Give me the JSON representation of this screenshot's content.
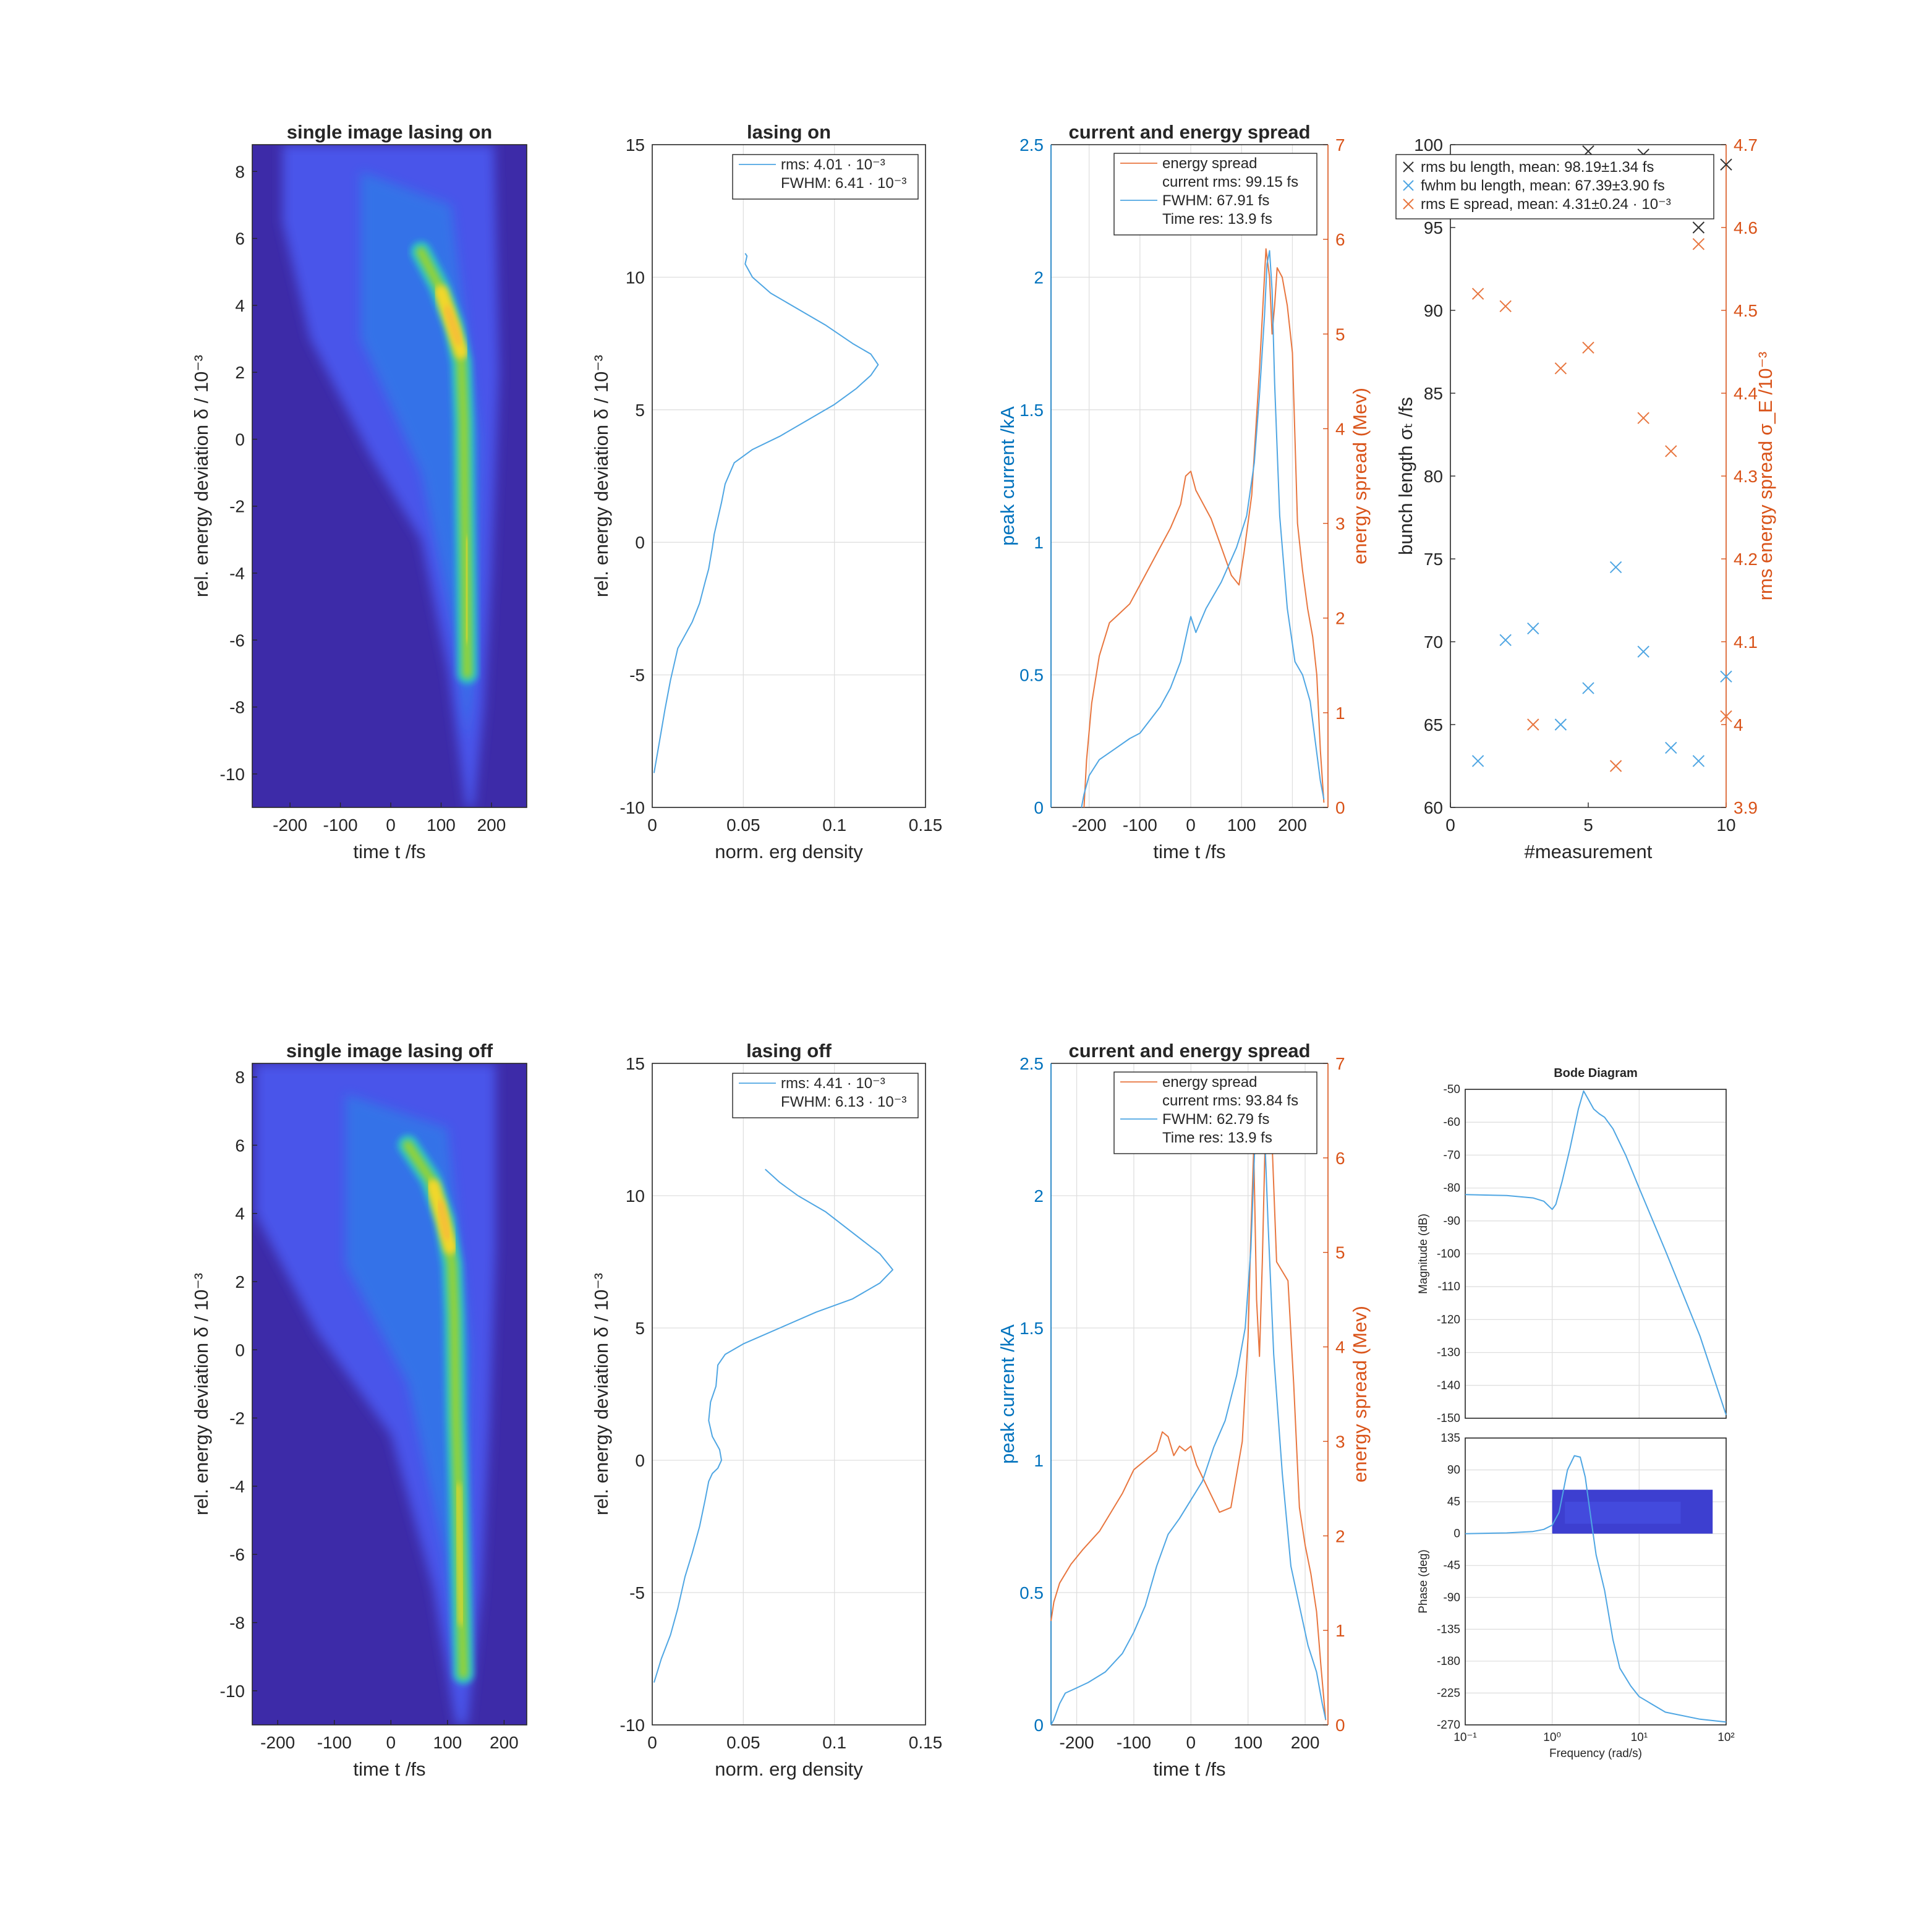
{
  "colors": {
    "blue": "#0072bd",
    "orange": "#d95319",
    "line_blue": "#4fa6e3",
    "line_orange": "#e8763f",
    "axis": "#262626",
    "grid": "#dfdfdf",
    "heat_bg": "#3d2ba8"
  },
  "row_top": {
    "image": {
      "title": "single image lasing on",
      "xlabel": "time t /fs",
      "ylabel": "rel. energy deviation δ / 10⁻³",
      "xticks": [
        -200,
        -100,
        0,
        100,
        200
      ],
      "yticks": [
        -10,
        -8,
        -6,
        -4,
        -2,
        0,
        2,
        4,
        6,
        8
      ],
      "xlim": [
        -275,
        270
      ],
      "ylim": [
        -11,
        8.8
      ]
    },
    "profile": {
      "title": "lasing on",
      "xlabel": "norm. erg density",
      "ylabel": "rel. energy deviation δ / 10⁻³",
      "legend": [
        "rms: 4.01 · 10⁻³",
        "FWHM: 6.41 · 10⁻³"
      ],
      "chart_data": {
        "type": "line",
        "xlim": [
          0,
          0.15
        ],
        "ylim": [
          -10,
          15
        ],
        "xticks": [
          "0",
          "0.05",
          "0.1",
          "0.15"
        ],
        "yticks": [
          "-10",
          "-5",
          "0",
          "5",
          "10",
          "15"
        ],
        "series": [
          {
            "x": [
              0.001,
              0.004,
              0.007,
              0.01,
              0.014,
              0.018,
              0.022,
              0.026,
              0.029,
              0.031,
              0.033,
              0.034,
              0.036,
              0.038,
              0.04,
              0.045,
              0.055,
              0.07,
              0.085,
              0.1,
              0.112,
              0.12,
              0.124,
              0.12,
              0.11,
              0.095,
              0.08,
              0.065,
              0.055,
              0.051,
              0.052,
              0.051
            ],
            "y": [
              -8.7,
              -7.5,
              -6.3,
              -5.2,
              -4.0,
              -3.5,
              -3.0,
              -2.3,
              -1.5,
              -1.0,
              -0.2,
              0.3,
              0.9,
              1.5,
              2.2,
              3.0,
              3.5,
              4.0,
              4.6,
              5.2,
              5.8,
              6.3,
              6.7,
              7.1,
              7.5,
              8.2,
              8.8,
              9.4,
              10.0,
              10.5,
              10.8,
              10.9
            ]
          }
        ]
      }
    },
    "current": {
      "title": "current and energy spread",
      "xlabel": "time t /fs",
      "ylabel_left": "peak current /kA",
      "ylabel_right": "energy spread (Mev)",
      "legend": [
        "energy spread",
        "current   rms: 99.15 fs",
        "FWHM: 67.91 fs",
        "Time res: 13.9 fs"
      ],
      "chart_data": {
        "type": "line",
        "xlim": [
          -275,
          270
        ],
        "ylim_left": [
          0,
          2.5
        ],
        "ylim_right": [
          0,
          7
        ],
        "xticks": [
          "-200",
          "-100",
          "0",
          "100",
          "200"
        ],
        "yticks_left": [
          "0",
          "0.5",
          "1",
          "1.5",
          "2",
          "2.5"
        ],
        "yticks_right": [
          "0",
          "1",
          "2",
          "3",
          "4",
          "5",
          "6",
          "7"
        ],
        "current": {
          "x": [
            -215,
            -210,
            -200,
            -180,
            -150,
            -120,
            -100,
            -80,
            -60,
            -40,
            -20,
            -5,
            0,
            10,
            30,
            60,
            90,
            110,
            125,
            135,
            145,
            150,
            155,
            160,
            165,
            175,
            190,
            205,
            220,
            235,
            245,
            255,
            262
          ],
          "y": [
            0,
            0.05,
            0.12,
            0.18,
            0.22,
            0.26,
            0.28,
            0.33,
            0.38,
            0.45,
            0.55,
            0.68,
            0.72,
            0.66,
            0.75,
            0.85,
            0.98,
            1.1,
            1.3,
            1.55,
            1.85,
            2.05,
            2.1,
            1.95,
            1.6,
            1.1,
            0.75,
            0.55,
            0.5,
            0.4,
            0.25,
            0.1,
            0.03
          ]
        },
        "energy_spread": {
          "x": [
            -210,
            -205,
            -195,
            -180,
            -160,
            -140,
            -120,
            -100,
            -80,
            -60,
            -40,
            -20,
            -10,
            0,
            10,
            20,
            40,
            60,
            80,
            95,
            105,
            120,
            135,
            148,
            155,
            160,
            165,
            170,
            180,
            190,
            200,
            210,
            220,
            230,
            240,
            248,
            255,
            262
          ],
          "y": [
            0,
            0.5,
            1.1,
            1.6,
            1.95,
            2.05,
            2.15,
            2.35,
            2.55,
            2.75,
            2.95,
            3.2,
            3.5,
            3.55,
            3.35,
            3.25,
            3.05,
            2.75,
            2.45,
            2.35,
            2.7,
            3.3,
            4.6,
            5.9,
            5.6,
            5.0,
            5.3,
            5.7,
            5.6,
            5.3,
            4.8,
            3.0,
            2.5,
            2.1,
            1.8,
            1.4,
            0.6,
            0.05
          ]
        }
      }
    },
    "measurements": {
      "xlabel": "#measurement",
      "ylabel_left": "bunch length σₜ /fs",
      "ylabel_right": "rms energy spread σ_E /10⁻³",
      "legend": [
        "rms bu length, mean: 98.19±1.34 fs",
        "fwhm bu length, mean: 67.39±3.90 fs",
        "rms E spread, mean: 4.31±0.24 · 10⁻³"
      ],
      "chart_data": {
        "type": "scatter",
        "xlim": [
          0,
          10
        ],
        "ylim_left": [
          60,
          100
        ],
        "ylim_right": [
          3.9,
          4.7
        ],
        "xticks": [
          "0",
          "5",
          "10"
        ],
        "yticks_left": [
          "60",
          "65",
          "70",
          "75",
          "80",
          "85",
          "90",
          "95",
          "100"
        ],
        "yticks_right": [
          "3.9",
          "4",
          "4.1",
          "4.2",
          "4.3",
          "4.4",
          "4.5",
          "4.6",
          "4.7"
        ],
        "rms_bu_length": {
          "x": [
            5,
            7,
            9,
            10
          ],
          "y": [
            99.6,
            99.4,
            95.0,
            98.8
          ]
        },
        "fwhm_bu_length": {
          "x": [
            1,
            2,
            3,
            4,
            5,
            6,
            7,
            8,
            9,
            10
          ],
          "y": [
            62.8,
            70.1,
            70.8,
            65.0,
            67.2,
            74.5,
            69.4,
            63.6,
            62.8,
            67.9
          ]
        },
        "rms_e_spread": {
          "x": [
            1,
            2,
            3,
            4,
            5,
            6,
            7,
            8,
            9,
            10
          ],
          "y": [
            4.52,
            4.505,
            4.0,
            4.43,
            4.455,
            3.95,
            4.37,
            4.33,
            4.58,
            4.01
          ]
        }
      }
    }
  },
  "row_bottom": {
    "image": {
      "title": "single image lasing off",
      "xlabel": "time t /fs",
      "ylabel": "rel. energy deviation δ / 10⁻³",
      "xticks": [
        -200,
        -100,
        0,
        100,
        200
      ],
      "yticks": [
        -10,
        -8,
        -6,
        -4,
        -2,
        0,
        2,
        4,
        6,
        8
      ],
      "xlim": [
        -245,
        240
      ],
      "ylim": [
        -11,
        8.4
      ]
    },
    "profile": {
      "title": "lasing off",
      "xlabel": "norm. erg density",
      "ylabel": "rel. energy deviation δ / 10⁻³",
      "legend": [
        "rms: 4.41 · 10⁻³",
        "FWHM: 6.13 · 10⁻³"
      ],
      "chart_data": {
        "type": "line",
        "xlim": [
          0,
          0.15
        ],
        "ylim": [
          -10,
          15
        ],
        "xticks": [
          "0",
          "0.05",
          "0.1",
          "0.15"
        ],
        "yticks": [
          "-10",
          "-5",
          "0",
          "5",
          "10",
          "15"
        ],
        "series": [
          {
            "x": [
              0.001,
              0.005,
              0.01,
              0.014,
              0.018,
              0.022,
              0.026,
              0.029,
              0.031,
              0.033,
              0.036,
              0.038,
              0.037,
              0.033,
              0.031,
              0.032,
              0.035,
              0.036,
              0.04,
              0.05,
              0.07,
              0.09,
              0.11,
              0.125,
              0.132,
              0.125,
              0.11,
              0.095,
              0.08,
              0.07,
              0.062
            ],
            "y": [
              -8.4,
              -7.5,
              -6.6,
              -5.6,
              -4.4,
              -3.5,
              -2.5,
              -1.5,
              -0.8,
              -0.5,
              -0.3,
              0.0,
              0.4,
              0.9,
              1.5,
              2.2,
              2.8,
              3.6,
              4.0,
              4.4,
              5.0,
              5.6,
              6.1,
              6.7,
              7.2,
              7.8,
              8.6,
              9.4,
              10.0,
              10.5,
              11.0
            ]
          }
        ]
      }
    },
    "current": {
      "title": "current and energy spread",
      "xlabel": "time t /fs",
      "ylabel_left": "peak current /kA",
      "ylabel_right": "energy spread (Mev)",
      "legend": [
        "energy spread",
        "current   rms: 93.84 fs",
        "FWHM: 62.79 fs",
        "Time res: 13.9 fs"
      ],
      "chart_data": {
        "type": "line",
        "xlim": [
          -245,
          240
        ],
        "ylim_left": [
          0,
          2.5
        ],
        "ylim_right": [
          0,
          7
        ],
        "xticks": [
          "-200",
          "-100",
          "0",
          "100",
          "200"
        ],
        "yticks_left": [
          "0",
          "0.5",
          "1",
          "1.5",
          "2",
          "2.5"
        ],
        "yticks_right": [
          "0",
          "1",
          "2",
          "3",
          "4",
          "5",
          "6",
          "7"
        ],
        "current": {
          "x": [
            -245,
            -240,
            -230,
            -220,
            -200,
            -180,
            -150,
            -120,
            -100,
            -80,
            -60,
            -40,
            -20,
            0,
            20,
            40,
            60,
            80,
            95,
            105,
            112,
            120,
            128,
            135,
            145,
            160,
            175,
            190,
            205,
            220,
            230,
            236
          ],
          "y": [
            0,
            0.02,
            0.08,
            0.12,
            0.14,
            0.16,
            0.2,
            0.27,
            0.35,
            0.45,
            0.6,
            0.72,
            0.78,
            0.85,
            0.92,
            1.05,
            1.15,
            1.32,
            1.5,
            1.8,
            2.2,
            2.45,
            2.3,
            1.9,
            1.4,
            0.95,
            0.6,
            0.45,
            0.3,
            0.2,
            0.08,
            0.02
          ]
        },
        "energy_spread": {
          "x": [
            -245,
            -240,
            -230,
            -210,
            -190,
            -160,
            -140,
            -120,
            -100,
            -80,
            -60,
            -50,
            -40,
            -30,
            -20,
            -10,
            0,
            10,
            30,
            50,
            70,
            90,
            100,
            105,
            110,
            115,
            120,
            125,
            130,
            140,
            150,
            170,
            180,
            190,
            200,
            210,
            220,
            228,
            236
          ],
          "y": [
            1.1,
            1.3,
            1.5,
            1.7,
            1.85,
            2.05,
            2.25,
            2.45,
            2.7,
            2.8,
            2.9,
            3.1,
            3.05,
            2.85,
            2.95,
            2.9,
            2.95,
            2.75,
            2.5,
            2.25,
            2.3,
            3.0,
            4.1,
            5.2,
            6.1,
            4.5,
            3.9,
            4.9,
            6.2,
            6.5,
            4.9,
            4.7,
            3.6,
            2.3,
            1.9,
            1.6,
            1.2,
            0.6,
            0.05
          ]
        }
      }
    },
    "bode": {
      "title": "Bode Diagram",
      "xlabel": "Frequency  (rad/s)",
      "ylabel_mag": "Magnitude (dB)",
      "ylabel_phase": "Phase (deg)",
      "chart_data": {
        "type": "line",
        "xscale": "log",
        "xlim": [
          0.1,
          100
        ],
        "xticks": [
          "10⁻¹",
          "10⁰",
          "10¹",
          "10²"
        ],
        "magnitude": {
          "ylim": [
            -150,
            -50
          ],
          "yticks": [
            "-50",
            "-60",
            "-70",
            "-80",
            "-90",
            "-100",
            "-110",
            "-120",
            "-130",
            "-140",
            "-150"
          ],
          "freq": [
            0.1,
            0.3,
            0.6,
            0.8,
            1.0,
            1.1,
            1.3,
            1.6,
            2.0,
            2.3,
            2.6,
            3.0,
            3.5,
            4.0,
            5.0,
            7.0,
            10,
            20,
            50,
            100
          ],
          "db": [
            -82,
            -82.3,
            -83,
            -84,
            -86.5,
            -85,
            -78,
            -68,
            -56,
            -50.5,
            -53,
            -56,
            -57.5,
            -58.5,
            -62,
            -70,
            -80,
            -99,
            -125,
            -149
          ]
        },
        "phase": {
          "ylim": [
            -270,
            135
          ],
          "yticks": [
            "135",
            "90",
            "45",
            "0",
            "-45",
            "-90",
            "-135",
            "-180",
            "-225",
            "-270"
          ],
          "freq": [
            0.1,
            0.3,
            0.6,
            0.8,
            1.0,
            1.2,
            1.5,
            1.8,
            2.1,
            2.4,
            2.8,
            3.2,
            4.0,
            5.0,
            6.0,
            8.0,
            10,
            20,
            50,
            100
          ],
          "deg": [
            0,
            1,
            3,
            6,
            12,
            30,
            90,
            110,
            108,
            80,
            20,
            -30,
            -80,
            -150,
            -190,
            -215,
            -230,
            -252,
            -262,
            -266
          ]
        }
      }
    }
  }
}
